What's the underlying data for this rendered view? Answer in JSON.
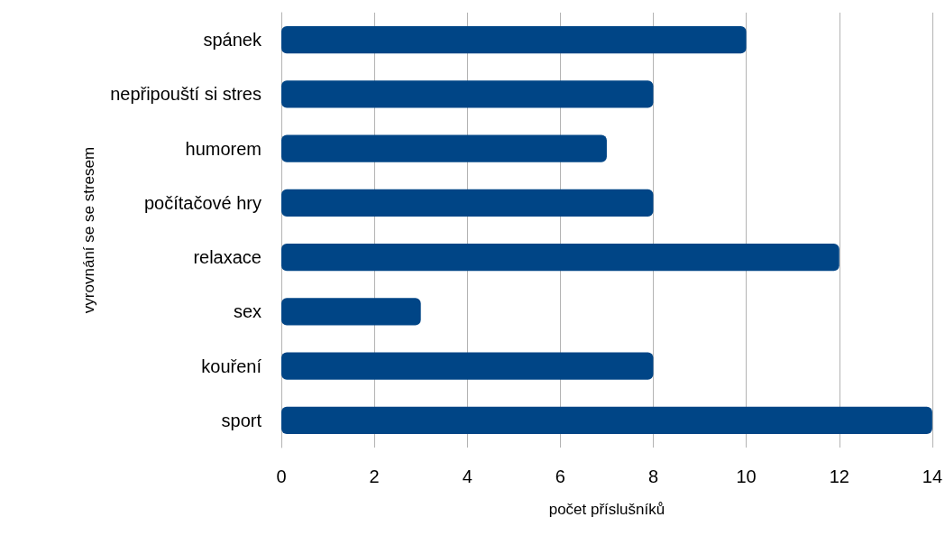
{
  "chart_data": {
    "type": "bar",
    "orientation": "horizontal",
    "xlabel": "počet příslušníků",
    "ylabel": "vyrovnání se se stresem",
    "categories": [
      "spánek",
      "nepřipouští si stres",
      "humorem",
      "počítačové hry",
      "relaxace",
      "sex",
      "kouření",
      "sport"
    ],
    "values": [
      10,
      8,
      7,
      8,
      12,
      3,
      8,
      14
    ],
    "color": "#004586",
    "xlim": [
      0,
      14
    ],
    "xticks": [
      0,
      2,
      4,
      6,
      8,
      10,
      12,
      14
    ],
    "grid": "x"
  }
}
